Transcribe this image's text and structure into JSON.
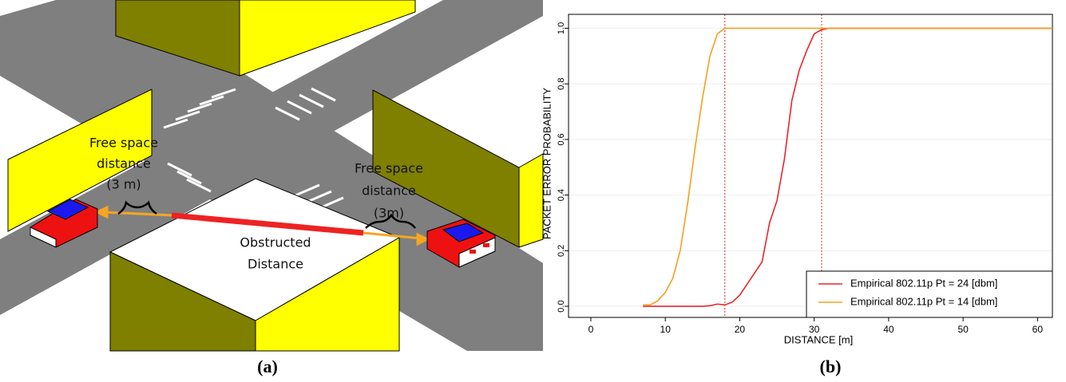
{
  "diagram": {
    "left_label": [
      "Free space",
      "distance",
      "(3 m)"
    ],
    "right_label": [
      "Free space",
      "distance",
      "(3m)"
    ],
    "center_label": [
      "Obstructed",
      "Distance"
    ],
    "caption": "(a)"
  },
  "chart_data": {
    "type": "line",
    "caption": "(b)",
    "x_label": "DISTANCE [m]",
    "y_label": "PACKET ERROR PROBABILITY",
    "xlim": [
      -3,
      62
    ],
    "ylim": [
      -0.04,
      1.05
    ],
    "xticks": [
      0,
      10,
      20,
      30,
      40,
      50,
      60
    ],
    "yticks": [
      {
        "value": 0,
        "label": "0.0"
      },
      {
        "value": 0.2,
        "label": "0.2"
      },
      {
        "value": 0.4,
        "label": "0.4"
      },
      {
        "value": 0.6,
        "label": "0.6"
      },
      {
        "value": 0.8,
        "label": "0.8"
      },
      {
        "value": 1,
        "label": "1.0"
      }
    ],
    "grid": true,
    "legend": "bottom-right",
    "reference_lines": [
      18,
      31
    ],
    "series": [
      {
        "name": "Empirical 802.11p Pt = 24 [dbm]",
        "color": "#e8262a",
        "x": [
          7,
          10,
          15,
          16,
          17,
          18,
          19,
          20,
          21,
          22,
          23,
          24,
          25,
          26,
          27,
          28,
          29,
          30,
          31,
          32,
          62
        ],
        "values": [
          0.0,
          0.0,
          0.0,
          0.002,
          0.008,
          0.005,
          0.015,
          0.04,
          0.08,
          0.12,
          0.16,
          0.3,
          0.38,
          0.53,
          0.74,
          0.85,
          0.92,
          0.98,
          0.995,
          1.0,
          1.0
        ]
      },
      {
        "name": "Empirical 802.11p Pt = 14 [dbm]",
        "color": "#f5a020",
        "x": [
          7,
          8,
          9,
          10,
          11,
          12,
          13,
          14,
          15,
          16,
          17,
          18,
          62
        ],
        "values": [
          0.005,
          0.005,
          0.02,
          0.05,
          0.1,
          0.2,
          0.37,
          0.57,
          0.75,
          0.9,
          0.98,
          1.0,
          1.0
        ]
      }
    ]
  }
}
